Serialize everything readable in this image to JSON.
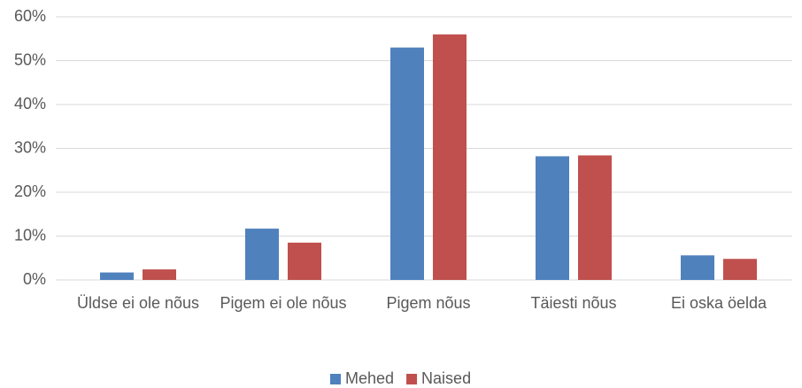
{
  "chart_data": {
    "type": "bar",
    "categories": [
      "Üldse ei ole nõus",
      "Pigem ei ole nõus",
      "Pigem nõus",
      "Täiesti nõus",
      "Ei oska öelda"
    ],
    "series": [
      {
        "name": "Mehed",
        "color": "#4f81bd",
        "values": [
          1.7,
          11.7,
          53,
          28.2,
          5.6
        ]
      },
      {
        "name": "Naised",
        "color": "#c0504d",
        "values": [
          2.4,
          8.5,
          56,
          28.4,
          4.8
        ]
      }
    ],
    "ylim": [
      0,
      60
    ],
    "yticks": [
      {
        "value": 0,
        "label": "0%"
      },
      {
        "value": 10,
        "label": "10%"
      },
      {
        "value": 20,
        "label": "20%"
      },
      {
        "value": 30,
        "label": "30%"
      },
      {
        "value": 40,
        "label": "40%"
      },
      {
        "value": 50,
        "label": "50%"
      },
      {
        "value": 60,
        "label": "60%"
      }
    ],
    "grid": true,
    "legend": "bottom"
  }
}
